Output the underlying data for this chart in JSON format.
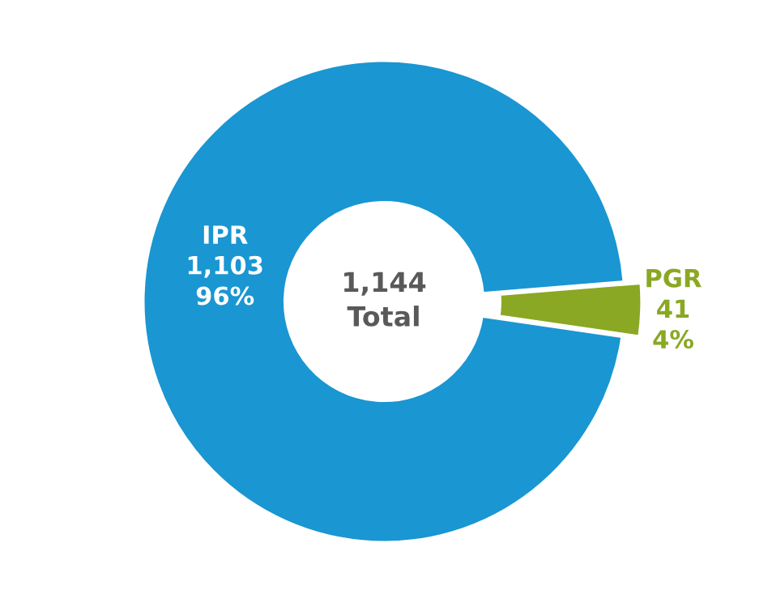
{
  "chart_data": {
    "type": "donut",
    "categories": [
      "IPR",
      "PGR"
    ],
    "values": [
      1103,
      41
    ],
    "colors": [
      "#1a96d2",
      "#8aa823"
    ],
    "value_labels": [
      "1,103\n96%",
      "41\n4%"
    ],
    "annotations": [
      "1,144\nTotal"
    ]
  }
}
